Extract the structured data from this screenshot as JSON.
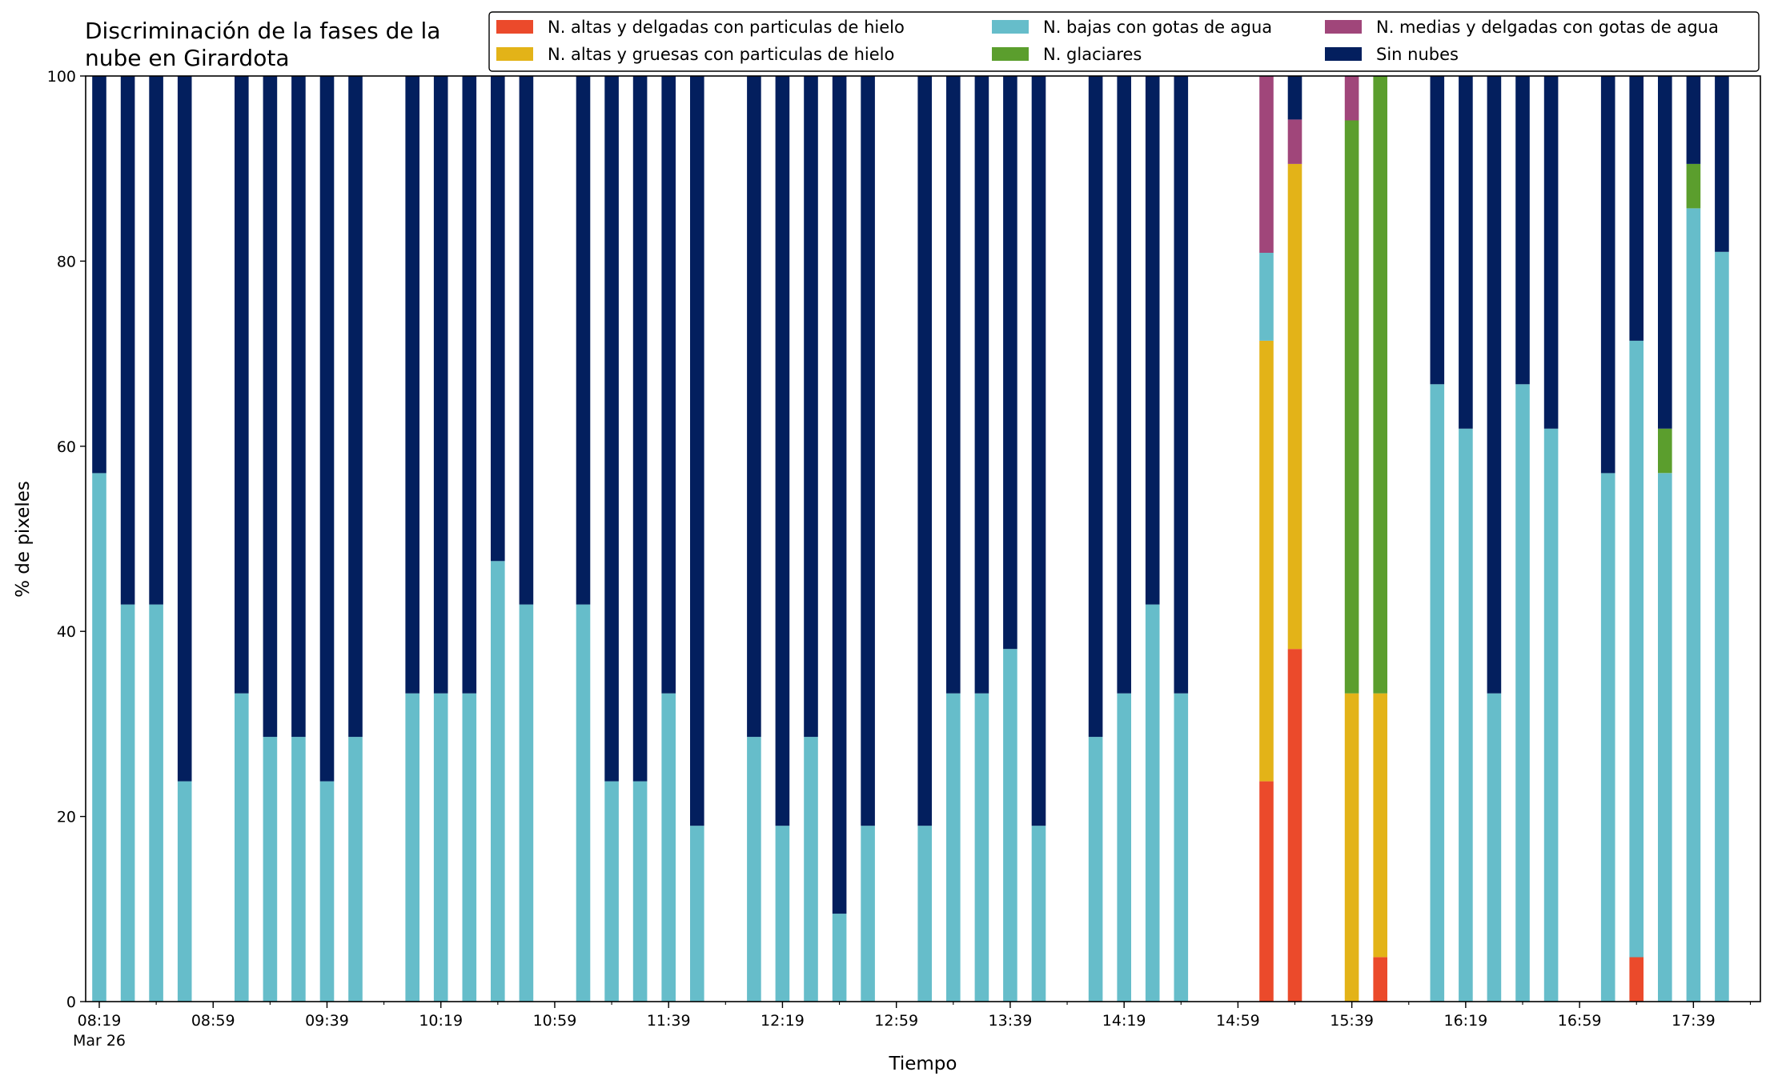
{
  "chart_data": {
    "type": "bar",
    "stacked": true,
    "title_lines": [
      "Discriminación de la fases de la",
      "nube en Girardota"
    ],
    "xlabel": "Tiempo",
    "ylabel": "% de pixeles",
    "ylim": [
      0,
      100
    ],
    "y_ticks": [
      "0",
      "20",
      "40",
      "60",
      "80",
      "100"
    ],
    "x_tick_labels": [
      "08:19",
      "08:59",
      "09:39",
      "10:19",
      "10:59",
      "11:39",
      "12:19",
      "12:59",
      "13:39",
      "14:19",
      "14:59",
      "15:39",
      "16:19",
      "16:59",
      "17:39"
    ],
    "x_first_label_date": "Mar 26",
    "legend_position": "top-right",
    "series": [
      {
        "key": "altas_delgadas",
        "name": "N. altas y delgadas con particulas de hielo",
        "color": "#eb4a2b"
      },
      {
        "key": "altas_gruesas",
        "name": "N. altas y gruesas con particulas de hielo",
        "color": "#e3b318"
      },
      {
        "key": "bajas",
        "name": "N. bajas con gotas de agua",
        "color": "#66bdca"
      },
      {
        "key": "glaciares",
        "name": "N. glaciares",
        "color": "#5b9e2d"
      },
      {
        "key": "medias",
        "name": "N. medias y delgadas con gotas de agua",
        "color": "#a0467a"
      },
      {
        "key": "sin_nubes",
        "name": "Sin nubes",
        "color": "#031f5e"
      }
    ],
    "bars": [
      {
        "time": "08:19",
        "altas_delgadas": 0,
        "altas_gruesas": 0,
        "bajas": 57.1,
        "glaciares": 0,
        "medias": 0,
        "sin_nubes": 42.9
      },
      {
        "time": "08:29",
        "altas_delgadas": 0,
        "altas_gruesas": 0,
        "bajas": 42.9,
        "glaciares": 0,
        "medias": 0,
        "sin_nubes": 57.1
      },
      {
        "time": "08:39",
        "altas_delgadas": 0,
        "altas_gruesas": 0,
        "bajas": 42.9,
        "glaciares": 0,
        "medias": 0,
        "sin_nubes": 57.1
      },
      {
        "time": "08:49",
        "altas_delgadas": 0,
        "altas_gruesas": 0,
        "bajas": 23.8,
        "glaciares": 0,
        "medias": 0,
        "sin_nubes": 76.2
      },
      {
        "time": "09:09",
        "altas_delgadas": 0,
        "altas_gruesas": 0,
        "bajas": 33.3,
        "glaciares": 0,
        "medias": 0,
        "sin_nubes": 66.7
      },
      {
        "time": "09:19",
        "altas_delgadas": 0,
        "altas_gruesas": 0,
        "bajas": 28.6,
        "glaciares": 0,
        "medias": 0,
        "sin_nubes": 71.4
      },
      {
        "time": "09:29",
        "altas_delgadas": 0,
        "altas_gruesas": 0,
        "bajas": 28.6,
        "glaciares": 0,
        "medias": 0,
        "sin_nubes": 71.4
      },
      {
        "time": "09:39",
        "altas_delgadas": 0,
        "altas_gruesas": 0,
        "bajas": 23.8,
        "glaciares": 0,
        "medias": 0,
        "sin_nubes": 76.2
      },
      {
        "time": "09:49",
        "altas_delgadas": 0,
        "altas_gruesas": 0,
        "bajas": 28.6,
        "glaciares": 0,
        "medias": 0,
        "sin_nubes": 71.4
      },
      {
        "time": "10:09",
        "altas_delgadas": 0,
        "altas_gruesas": 0,
        "bajas": 33.3,
        "glaciares": 0,
        "medias": 0,
        "sin_nubes": 66.7
      },
      {
        "time": "10:19",
        "altas_delgadas": 0,
        "altas_gruesas": 0,
        "bajas": 33.3,
        "glaciares": 0,
        "medias": 0,
        "sin_nubes": 66.7
      },
      {
        "time": "10:29",
        "altas_delgadas": 0,
        "altas_gruesas": 0,
        "bajas": 33.3,
        "glaciares": 0,
        "medias": 0,
        "sin_nubes": 66.7
      },
      {
        "time": "10:39",
        "altas_delgadas": 0,
        "altas_gruesas": 0,
        "bajas": 47.6,
        "glaciares": 0,
        "medias": 0,
        "sin_nubes": 52.4
      },
      {
        "time": "10:49",
        "altas_delgadas": 0,
        "altas_gruesas": 0,
        "bajas": 42.9,
        "glaciares": 0,
        "medias": 0,
        "sin_nubes": 57.1
      },
      {
        "time": "11:09",
        "altas_delgadas": 0,
        "altas_gruesas": 0,
        "bajas": 42.9,
        "glaciares": 0,
        "medias": 0,
        "sin_nubes": 57.1
      },
      {
        "time": "11:19",
        "altas_delgadas": 0,
        "altas_gruesas": 0,
        "bajas": 23.8,
        "glaciares": 0,
        "medias": 0,
        "sin_nubes": 76.2
      },
      {
        "time": "11:29",
        "altas_delgadas": 0,
        "altas_gruesas": 0,
        "bajas": 23.8,
        "glaciares": 0,
        "medias": 0,
        "sin_nubes": 76.2
      },
      {
        "time": "11:39",
        "altas_delgadas": 0,
        "altas_gruesas": 0,
        "bajas": 33.3,
        "glaciares": 0,
        "medias": 0,
        "sin_nubes": 66.7
      },
      {
        "time": "11:49",
        "altas_delgadas": 0,
        "altas_gruesas": 0,
        "bajas": 19.0,
        "glaciares": 0,
        "medias": 0,
        "sin_nubes": 81.0
      },
      {
        "time": "12:09",
        "altas_delgadas": 0,
        "altas_gruesas": 0,
        "bajas": 28.6,
        "glaciares": 0,
        "medias": 0,
        "sin_nubes": 71.4
      },
      {
        "time": "12:19",
        "altas_delgadas": 0,
        "altas_gruesas": 0,
        "bajas": 19.0,
        "glaciares": 0,
        "medias": 0,
        "sin_nubes": 81.0
      },
      {
        "time": "12:29",
        "altas_delgadas": 0,
        "altas_gruesas": 0,
        "bajas": 28.6,
        "glaciares": 0,
        "medias": 0,
        "sin_nubes": 71.4
      },
      {
        "time": "12:39",
        "altas_delgadas": 0,
        "altas_gruesas": 0,
        "bajas": 9.5,
        "glaciares": 0,
        "medias": 0,
        "sin_nubes": 90.5
      },
      {
        "time": "12:49",
        "altas_delgadas": 0,
        "altas_gruesas": 0,
        "bajas": 19.0,
        "glaciares": 0,
        "medias": 0,
        "sin_nubes": 81.0
      },
      {
        "time": "13:09",
        "altas_delgadas": 0,
        "altas_gruesas": 0,
        "bajas": 19.0,
        "glaciares": 0,
        "medias": 0,
        "sin_nubes": 81.0
      },
      {
        "time": "13:19",
        "altas_delgadas": 0,
        "altas_gruesas": 0,
        "bajas": 33.3,
        "glaciares": 0,
        "medias": 0,
        "sin_nubes": 66.7
      },
      {
        "time": "13:29",
        "altas_delgadas": 0,
        "altas_gruesas": 0,
        "bajas": 33.3,
        "glaciares": 0,
        "medias": 0,
        "sin_nubes": 66.7
      },
      {
        "time": "13:39",
        "altas_delgadas": 0,
        "altas_gruesas": 0,
        "bajas": 38.1,
        "glaciares": 0,
        "medias": 0,
        "sin_nubes": 61.9
      },
      {
        "time": "13:49",
        "altas_delgadas": 0,
        "altas_gruesas": 0,
        "bajas": 19.0,
        "glaciares": 0,
        "medias": 0,
        "sin_nubes": 81.0
      },
      {
        "time": "14:09",
        "altas_delgadas": 0,
        "altas_gruesas": 0,
        "bajas": 28.6,
        "glaciares": 0,
        "medias": 0,
        "sin_nubes": 71.4
      },
      {
        "time": "14:19",
        "altas_delgadas": 0,
        "altas_gruesas": 0,
        "bajas": 33.3,
        "glaciares": 0,
        "medias": 0,
        "sin_nubes": 66.7
      },
      {
        "time": "14:29",
        "altas_delgadas": 0,
        "altas_gruesas": 0,
        "bajas": 42.9,
        "glaciares": 0,
        "medias": 0,
        "sin_nubes": 57.1
      },
      {
        "time": "14:39",
        "altas_delgadas": 0,
        "altas_gruesas": 0,
        "bajas": 33.3,
        "glaciares": 0,
        "medias": 0,
        "sin_nubes": 66.7
      },
      {
        "time": "15:09",
        "altas_delgadas": 23.8,
        "altas_gruesas": 47.6,
        "bajas": 9.5,
        "glaciares": 0,
        "medias": 19.1,
        "sin_nubes": 0
      },
      {
        "time": "15:19",
        "altas_delgadas": 38.1,
        "altas_gruesas": 52.4,
        "bajas": 0,
        "glaciares": 0,
        "medias": 4.8,
        "sin_nubes": 4.7
      },
      {
        "time": "15:39",
        "altas_delgadas": 0,
        "altas_gruesas": 33.3,
        "bajas": 0,
        "glaciares": 61.9,
        "medias": 4.8,
        "sin_nubes": 0
      },
      {
        "time": "15:49",
        "altas_delgadas": 4.8,
        "altas_gruesas": 28.5,
        "bajas": 0,
        "glaciares": 66.7,
        "medias": 0,
        "sin_nubes": 0
      },
      {
        "time": "16:09",
        "altas_delgadas": 0,
        "altas_gruesas": 0,
        "bajas": 66.7,
        "glaciares": 0,
        "medias": 0,
        "sin_nubes": 33.3
      },
      {
        "time": "16:19",
        "altas_delgadas": 0,
        "altas_gruesas": 0,
        "bajas": 61.9,
        "glaciares": 0,
        "medias": 0,
        "sin_nubes": 38.1
      },
      {
        "time": "16:29",
        "altas_delgadas": 0,
        "altas_gruesas": 0,
        "bajas": 33.3,
        "glaciares": 0,
        "medias": 0,
        "sin_nubes": 66.7
      },
      {
        "time": "16:39",
        "altas_delgadas": 0,
        "altas_gruesas": 0,
        "bajas": 66.7,
        "glaciares": 0,
        "medias": 0,
        "sin_nubes": 33.3
      },
      {
        "time": "16:49",
        "altas_delgadas": 0,
        "altas_gruesas": 0,
        "bajas": 61.9,
        "glaciares": 0,
        "medias": 0,
        "sin_nubes": 38.1
      },
      {
        "time": "17:09",
        "altas_delgadas": 0,
        "altas_gruesas": 0,
        "bajas": 57.1,
        "glaciares": 0,
        "medias": 0,
        "sin_nubes": 42.9
      },
      {
        "time": "17:19",
        "altas_delgadas": 4.8,
        "altas_gruesas": 0,
        "bajas": 66.6,
        "glaciares": 0,
        "medias": 0,
        "sin_nubes": 28.6
      },
      {
        "time": "17:29",
        "altas_delgadas": 0,
        "altas_gruesas": 0,
        "bajas": 57.1,
        "glaciares": 4.8,
        "medias": 0,
        "sin_nubes": 38.1
      },
      {
        "time": "17:39",
        "altas_delgadas": 0,
        "altas_gruesas": 0,
        "bajas": 85.7,
        "glaciares": 4.8,
        "medias": 0,
        "sin_nubes": 9.5
      },
      {
        "time": "17:49",
        "altas_delgadas": 0,
        "altas_gruesas": 0,
        "bajas": 81.0,
        "glaciares": 0,
        "medias": 0,
        "sin_nubes": 19.0
      }
    ]
  }
}
